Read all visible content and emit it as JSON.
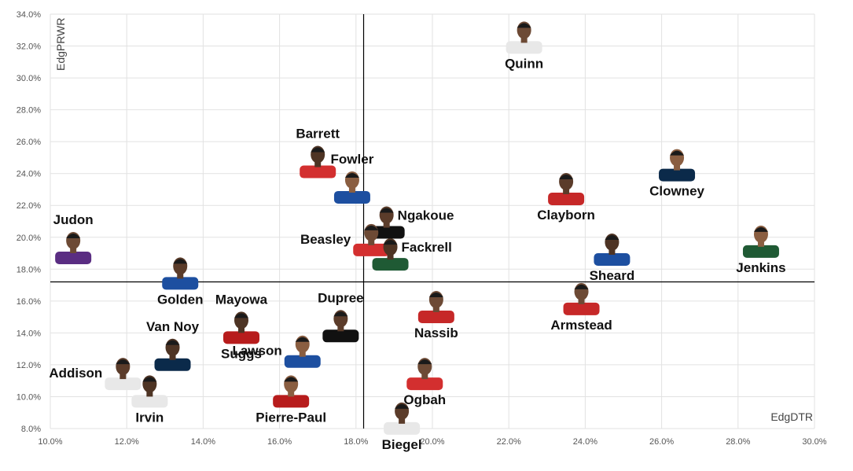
{
  "chart_data": {
    "type": "scatter",
    "xlabel": "EdgDTR",
    "ylabel": "EdgPRWR",
    "xlim": [
      10.0,
      30.0
    ],
    "ylim": [
      8.0,
      34.0
    ],
    "x_ticks": [
      "10.0%",
      "12.0%",
      "14.0%",
      "16.0%",
      "18.0%",
      "20.0%",
      "22.0%",
      "24.0%",
      "26.0%",
      "28.0%",
      "30.0%"
    ],
    "y_ticks": [
      "8.0%",
      "10.0%",
      "12.0%",
      "14.0%",
      "16.0%",
      "18.0%",
      "20.0%",
      "22.0%",
      "24.0%",
      "26.0%",
      "28.0%",
      "30.0%",
      "32.0%",
      "34.0%"
    ],
    "ref_x": 18.2,
    "ref_y": 17.2,
    "grid": true,
    "points": [
      {
        "name": "Quinn",
        "x": 22.4,
        "y": 32.4,
        "jersey": "#e8e8e8",
        "label_pos": "below"
      },
      {
        "name": "Barrett",
        "x": 17.0,
        "y": 24.6,
        "jersey": "#d32f2f",
        "label_pos": "above"
      },
      {
        "name": "Fowler",
        "x": 17.9,
        "y": 23.0,
        "jersey": "#1d4fa0",
        "label_pos": "above"
      },
      {
        "name": "Ngakoue",
        "x": 18.8,
        "y": 20.8,
        "jersey": "#111111",
        "label_pos": "right"
      },
      {
        "name": "Beasley",
        "x": 18.4,
        "y": 19.7,
        "jersey": "#d32f2f",
        "label_pos": "left"
      },
      {
        "name": "Fackrell",
        "x": 18.9,
        "y": 18.8,
        "jersey": "#1f5a34",
        "label_pos": "right"
      },
      {
        "name": "Clowney",
        "x": 26.4,
        "y": 24.4,
        "jersey": "#0b2a4a",
        "label_pos": "below"
      },
      {
        "name": "Clayborn",
        "x": 23.5,
        "y": 22.9,
        "jersey": "#c62828",
        "label_pos": "below"
      },
      {
        "name": "Judon",
        "x": 10.6,
        "y": 19.2,
        "jersey": "#5a2d82",
        "label_pos": "above"
      },
      {
        "name": "Sheard",
        "x": 24.7,
        "y": 19.1,
        "jersey": "#1d4fa0",
        "label_pos": "below"
      },
      {
        "name": "Jenkins",
        "x": 28.6,
        "y": 19.6,
        "jersey": "#1f5a34",
        "label_pos": "below"
      },
      {
        "name": "Golden",
        "x": 13.4,
        "y": 17.6,
        "jersey": "#1d4fa0",
        "label_pos": "below"
      },
      {
        "name": "Armstead",
        "x": 23.9,
        "y": 16.0,
        "jersey": "#c62828",
        "label_pos": "below"
      },
      {
        "name": "Mayowa",
        "x": 15.0,
        "y": 14.2,
        "jersey": "#b71c1c",
        "label_pos": "above"
      },
      {
        "name": "Suggs",
        "x": 15.0,
        "y": 14.2,
        "jersey": "#b71c1c",
        "label_pos": "below",
        "hidden_marker": true
      },
      {
        "name": "Dupree",
        "x": 17.6,
        "y": 14.3,
        "jersey": "#111111",
        "label_pos": "above"
      },
      {
        "name": "Nassib",
        "x": 20.1,
        "y": 15.5,
        "jersey": "#c62828",
        "label_pos": "below"
      },
      {
        "name": "Van Noy",
        "x": 13.2,
        "y": 12.5,
        "jersey": "#0b2a4a",
        "label_pos": "above"
      },
      {
        "name": "Lawson",
        "x": 16.6,
        "y": 12.7,
        "jersey": "#1d4fa0",
        "label_pos": "left"
      },
      {
        "name": "Addison",
        "x": 11.9,
        "y": 11.3,
        "jersey": "#e8e8e8",
        "label_pos": "left"
      },
      {
        "name": "Ogbah",
        "x": 19.8,
        "y": 11.3,
        "jersey": "#d32f2f",
        "label_pos": "below"
      },
      {
        "name": "Irvin",
        "x": 12.6,
        "y": 10.2,
        "jersey": "#e8e8e8",
        "label_pos": "below"
      },
      {
        "name": "Pierre-Paul",
        "x": 16.3,
        "y": 10.2,
        "jersey": "#b71c1c",
        "label_pos": "below"
      },
      {
        "name": "Biegel",
        "x": 19.2,
        "y": 8.5,
        "jersey": "#e8e8e8",
        "label_pos": "below"
      }
    ]
  }
}
